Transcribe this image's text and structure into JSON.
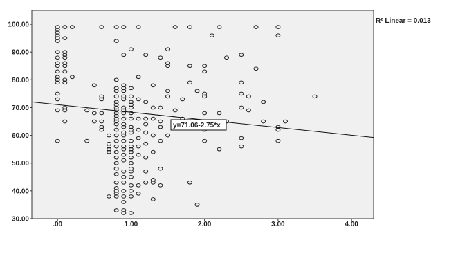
{
  "chart_data": {
    "type": "scatter",
    "title": "",
    "xlabel": "",
    "ylabel": "",
    "xlim": [
      -0.35,
      4.3
    ],
    "ylim": [
      30,
      105
    ],
    "x_ticks": [
      ".00",
      "1.00",
      "2.00",
      "3.00",
      "4.00"
    ],
    "y_ticks": [
      "30.00",
      "40.00",
      "50.00",
      "60.00",
      "70.00",
      "80.00",
      "90.00",
      "100.00"
    ],
    "grid": false,
    "r2_label": "R² Linear = 0.013",
    "fit_line": {
      "intercept": 71.06,
      "slope": -2.75,
      "label": "y=71.06-2.75*x"
    },
    "points": [
      [
        0,
        99
      ],
      [
        0,
        98
      ],
      [
        0,
        97
      ],
      [
        0,
        96
      ],
      [
        0,
        95
      ],
      [
        0,
        94
      ],
      [
        0,
        90
      ],
      [
        0,
        88
      ],
      [
        0,
        86
      ],
      [
        0,
        85
      ],
      [
        0,
        83
      ],
      [
        0,
        81
      ],
      [
        0,
        80
      ],
      [
        0,
        79
      ],
      [
        0,
        75
      ],
      [
        0,
        73
      ],
      [
        0,
        69
      ],
      [
        0,
        58
      ],
      [
        0.1,
        99
      ],
      [
        0.1,
        95
      ],
      [
        0.1,
        90
      ],
      [
        0.1,
        89
      ],
      [
        0.1,
        88
      ],
      [
        0.1,
        86
      ],
      [
        0.1,
        85
      ],
      [
        0.1,
        83
      ],
      [
        0.1,
        80
      ],
      [
        0.1,
        79
      ],
      [
        0.1,
        70
      ],
      [
        0.1,
        69
      ],
      [
        0.1,
        65
      ],
      [
        0.2,
        99
      ],
      [
        0.2,
        81
      ],
      [
        0.4,
        69
      ],
      [
        0.4,
        58
      ],
      [
        0.5,
        78
      ],
      [
        0.5,
        68
      ],
      [
        0.5,
        65
      ],
      [
        0.6,
        99
      ],
      [
        0.6,
        74
      ],
      [
        0.6,
        73
      ],
      [
        0.6,
        68
      ],
      [
        0.6,
        65
      ],
      [
        0.6,
        63
      ],
      [
        0.6,
        62
      ],
      [
        0.7,
        60
      ],
      [
        0.7,
        57
      ],
      [
        0.7,
        56
      ],
      [
        0.7,
        55
      ],
      [
        0.7,
        54
      ],
      [
        0.7,
        38
      ],
      [
        0.8,
        99
      ],
      [
        0.8,
        94
      ],
      [
        0.8,
        80
      ],
      [
        0.8,
        77
      ],
      [
        0.8,
        76
      ],
      [
        0.8,
        74
      ],
      [
        0.8,
        72
      ],
      [
        0.8,
        71
      ],
      [
        0.8,
        70
      ],
      [
        0.8,
        69
      ],
      [
        0.8,
        68
      ],
      [
        0.8,
        67
      ],
      [
        0.8,
        66
      ],
      [
        0.8,
        65
      ],
      [
        0.8,
        64
      ],
      [
        0.8,
        62
      ],
      [
        0.8,
        60
      ],
      [
        0.8,
        58
      ],
      [
        0.8,
        56
      ],
      [
        0.8,
        54
      ],
      [
        0.8,
        52
      ],
      [
        0.8,
        50
      ],
      [
        0.8,
        48
      ],
      [
        0.8,
        46
      ],
      [
        0.8,
        43
      ],
      [
        0.8,
        41
      ],
      [
        0.8,
        40
      ],
      [
        0.8,
        39
      ],
      [
        0.8,
        38
      ],
      [
        0.8,
        33
      ],
      [
        0.9,
        99
      ],
      [
        0.9,
        89
      ],
      [
        0.9,
        78
      ],
      [
        0.9,
        77
      ],
      [
        0.9,
        76
      ],
      [
        0.9,
        74
      ],
      [
        0.9,
        73
      ],
      [
        0.9,
        70
      ],
      [
        0.9,
        69
      ],
      [
        0.9,
        68
      ],
      [
        0.9,
        66
      ],
      [
        0.9,
        64
      ],
      [
        0.9,
        63
      ],
      [
        0.9,
        61
      ],
      [
        0.9,
        60
      ],
      [
        0.9,
        58
      ],
      [
        0.9,
        56
      ],
      [
        0.9,
        55
      ],
      [
        0.9,
        53
      ],
      [
        0.9,
        51
      ],
      [
        0.9,
        47
      ],
      [
        0.9,
        45
      ],
      [
        0.9,
        43
      ],
      [
        0.9,
        40
      ],
      [
        0.9,
        38
      ],
      [
        0.9,
        36
      ],
      [
        0.9,
        33
      ],
      [
        0.9,
        32
      ],
      [
        1,
        91
      ],
      [
        1,
        77
      ],
      [
        1,
        74
      ],
      [
        1,
        72
      ],
      [
        1,
        71
      ],
      [
        1,
        70
      ],
      [
        1,
        68
      ],
      [
        1,
        66
      ],
      [
        1,
        63
      ],
      [
        1,
        62
      ],
      [
        1,
        61
      ],
      [
        1,
        58
      ],
      [
        1,
        56
      ],
      [
        1,
        55
      ],
      [
        1,
        54
      ],
      [
        1,
        52
      ],
      [
        1,
        50
      ],
      [
        1,
        48
      ],
      [
        1,
        47
      ],
      [
        1,
        45
      ],
      [
        1,
        42
      ],
      [
        1,
        40
      ],
      [
        1,
        38
      ],
      [
        1,
        32
      ],
      [
        1.1,
        99
      ],
      [
        1.1,
        81
      ],
      [
        1.1,
        73
      ],
      [
        1.1,
        66
      ],
      [
        1.1,
        62
      ],
      [
        1.1,
        59
      ],
      [
        1.1,
        56
      ],
      [
        1.1,
        53
      ],
      [
        1.1,
        42
      ],
      [
        1.1,
        39
      ],
      [
        1.2,
        89
      ],
      [
        1.2,
        72
      ],
      [
        1.2,
        66
      ],
      [
        1.2,
        64
      ],
      [
        1.2,
        61
      ],
      [
        1.2,
        57
      ],
      [
        1.2,
        52
      ],
      [
        1.2,
        47
      ],
      [
        1.2,
        43
      ],
      [
        1.3,
        78
      ],
      [
        1.3,
        70
      ],
      [
        1.3,
        66
      ],
      [
        1.3,
        60
      ],
      [
        1.3,
        54
      ],
      [
        1.3,
        44
      ],
      [
        1.3,
        43
      ],
      [
        1.3,
        37
      ],
      [
        1.4,
        88
      ],
      [
        1.4,
        70
      ],
      [
        1.4,
        65
      ],
      [
        1.4,
        63
      ],
      [
        1.4,
        58
      ],
      [
        1.4,
        48
      ],
      [
        1.4,
        42
      ],
      [
        1.5,
        91
      ],
      [
        1.5,
        86
      ],
      [
        1.5,
        85
      ],
      [
        1.5,
        76
      ],
      [
        1.5,
        74
      ],
      [
        1.5,
        60
      ],
      [
        1.6,
        99
      ],
      [
        1.6,
        69
      ],
      [
        1.7,
        73
      ],
      [
        1.7,
        66
      ],
      [
        1.8,
        99
      ],
      [
        1.8,
        85
      ],
      [
        1.8,
        79
      ],
      [
        1.8,
        43
      ],
      [
        1.9,
        76
      ],
      [
        1.9,
        35
      ],
      [
        2,
        85
      ],
      [
        2,
        83
      ],
      [
        2,
        75
      ],
      [
        2,
        74
      ],
      [
        2,
        68
      ],
      [
        2,
        62
      ],
      [
        2,
        58
      ],
      [
        2.1,
        96
      ],
      [
        2.2,
        99
      ],
      [
        2.2,
        68
      ],
      [
        2.2,
        55
      ],
      [
        2.3,
        88
      ],
      [
        2.3,
        65
      ],
      [
        2.5,
        89
      ],
      [
        2.5,
        79
      ],
      [
        2.5,
        75
      ],
      [
        2.5,
        70
      ],
      [
        2.5,
        59
      ],
      [
        2.5,
        56
      ],
      [
        2.6,
        74
      ],
      [
        2.6,
        69
      ],
      [
        2.7,
        99
      ],
      [
        2.7,
        84
      ],
      [
        2.8,
        72
      ],
      [
        2.8,
        65
      ],
      [
        3,
        99
      ],
      [
        3,
        96
      ],
      [
        3,
        63
      ],
      [
        3,
        62
      ],
      [
        3,
        58
      ],
      [
        3.1,
        65
      ],
      [
        3.5,
        74
      ]
    ]
  }
}
